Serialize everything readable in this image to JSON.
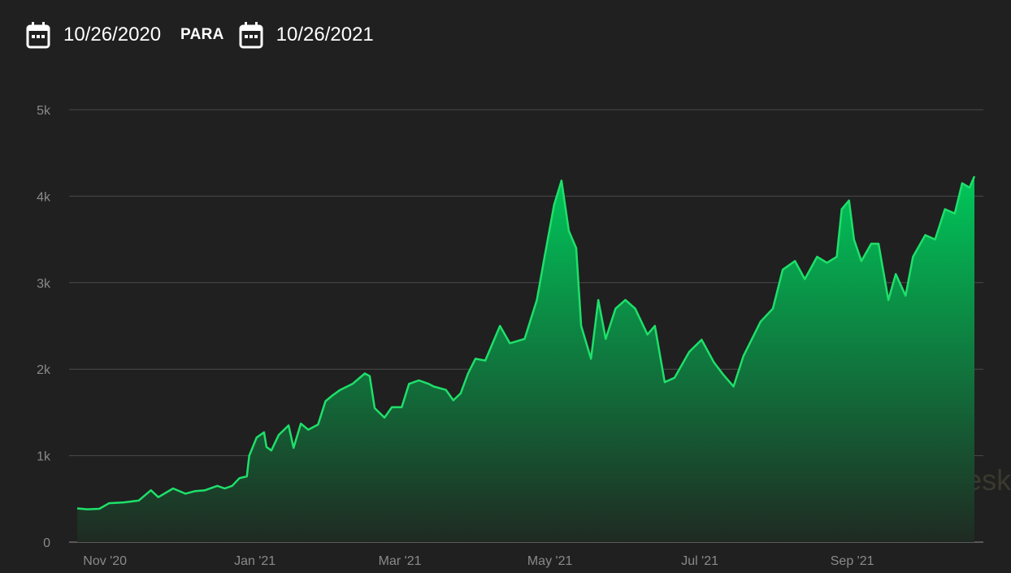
{
  "date_range": {
    "from_value": "10/26/2020",
    "separator_label": "PARA",
    "to_value": "10/26/2021",
    "icon": "calendar-icon"
  },
  "watermark": {
    "text": "coindesk",
    "icon": "coindesk-logo-icon"
  },
  "colors": {
    "background": "#202020",
    "line": "#1ee06a",
    "fill_top": "#00c75a",
    "fill_bottom": "#1f2a22",
    "grid": "#4a4a4a",
    "tick_text": "#8a8a8a"
  },
  "chart_data": {
    "type": "area",
    "title": "",
    "xlabel": "",
    "ylabel": "",
    "x_range": [
      "2020-10-26",
      "2021-10-26"
    ],
    "ylim": [
      0,
      5000
    ],
    "y_ticks": [
      0,
      1000,
      2000,
      3000,
      4000,
      5000
    ],
    "y_tick_labels": [
      "0",
      "1k",
      "2k",
      "3k",
      "4k",
      "5k"
    ],
    "x_ticks": [
      "2020-11-01",
      "2021-01-01",
      "2021-03-01",
      "2021-05-01",
      "2021-07-01",
      "2021-09-01"
    ],
    "x_tick_labels": [
      "Nov '20",
      "Jan '21",
      "Mar '21",
      "May '21",
      "Jul '21",
      "Sep '21"
    ],
    "grid": true,
    "legend": "none",
    "series": [
      {
        "points": [
          [
            "2020-10-26",
            390
          ],
          [
            "2020-10-30",
            380
          ],
          [
            "2020-11-04",
            385
          ],
          [
            "2020-11-08",
            450
          ],
          [
            "2020-11-14",
            460
          ],
          [
            "2020-11-20",
            480
          ],
          [
            "2020-11-25",
            600
          ],
          [
            "2020-11-28",
            520
          ],
          [
            "2020-12-04",
            620
          ],
          [
            "2020-12-09",
            560
          ],
          [
            "2020-12-13",
            590
          ],
          [
            "2020-12-17",
            600
          ],
          [
            "2020-12-22",
            650
          ],
          [
            "2020-12-25",
            620
          ],
          [
            "2020-12-28",
            650
          ],
          [
            "2020-12-31",
            740
          ],
          [
            "2021-01-03",
            760
          ],
          [
            "2021-01-04",
            1000
          ],
          [
            "2021-01-07",
            1210
          ],
          [
            "2021-01-10",
            1270
          ],
          [
            "2021-01-11",
            1100
          ],
          [
            "2021-01-13",
            1060
          ],
          [
            "2021-01-16",
            1240
          ],
          [
            "2021-01-20",
            1350
          ],
          [
            "2021-01-22",
            1090
          ],
          [
            "2021-01-25",
            1370
          ],
          [
            "2021-01-28",
            1300
          ],
          [
            "2021-02-01",
            1360
          ],
          [
            "2021-02-04",
            1630
          ],
          [
            "2021-02-07",
            1700
          ],
          [
            "2021-02-10",
            1760
          ],
          [
            "2021-02-15",
            1830
          ],
          [
            "2021-02-20",
            1950
          ],
          [
            "2021-02-22",
            1920
          ],
          [
            "2021-02-24",
            1550
          ],
          [
            "2021-02-28",
            1440
          ],
          [
            "2021-03-03",
            1560
          ],
          [
            "2021-03-07",
            1560
          ],
          [
            "2021-03-10",
            1830
          ],
          [
            "2021-03-14",
            1870
          ],
          [
            "2021-03-18",
            1830
          ],
          [
            "2021-03-20",
            1800
          ],
          [
            "2021-03-25",
            1760
          ],
          [
            "2021-03-28",
            1640
          ],
          [
            "2021-03-31",
            1720
          ],
          [
            "2021-04-03",
            1950
          ],
          [
            "2021-04-06",
            2120
          ],
          [
            "2021-04-10",
            2100
          ],
          [
            "2021-04-16",
            2500
          ],
          [
            "2021-04-20",
            2300
          ],
          [
            "2021-04-26",
            2350
          ],
          [
            "2021-05-01",
            2800
          ],
          [
            "2021-05-04",
            3280
          ],
          [
            "2021-05-08",
            3900
          ],
          [
            "2021-05-11",
            4180
          ],
          [
            "2021-05-14",
            3600
          ],
          [
            "2021-05-17",
            3400
          ],
          [
            "2021-05-19",
            2500
          ],
          [
            "2021-05-23",
            2120
          ],
          [
            "2021-05-26",
            2800
          ],
          [
            "2021-05-29",
            2350
          ],
          [
            "2021-06-02",
            2700
          ],
          [
            "2021-06-06",
            2800
          ],
          [
            "2021-06-10",
            2700
          ],
          [
            "2021-06-15",
            2400
          ],
          [
            "2021-06-18",
            2500
          ],
          [
            "2021-06-22",
            1850
          ],
          [
            "2021-06-26",
            1900
          ],
          [
            "2021-07-02",
            2200
          ],
          [
            "2021-07-07",
            2340
          ],
          [
            "2021-07-12",
            2080
          ],
          [
            "2021-07-16",
            1930
          ],
          [
            "2021-07-20",
            1800
          ],
          [
            "2021-07-24",
            2150
          ],
          [
            "2021-07-31",
            2550
          ],
          [
            "2021-08-05",
            2700
          ],
          [
            "2021-08-09",
            3150
          ],
          [
            "2021-08-14",
            3250
          ],
          [
            "2021-08-18",
            3040
          ],
          [
            "2021-08-23",
            3300
          ],
          [
            "2021-08-27",
            3230
          ],
          [
            "2021-08-31",
            3300
          ],
          [
            "2021-09-02",
            3850
          ],
          [
            "2021-09-05",
            3950
          ],
          [
            "2021-09-07",
            3500
          ],
          [
            "2021-09-10",
            3250
          ],
          [
            "2021-09-14",
            3450
          ],
          [
            "2021-09-17",
            3450
          ],
          [
            "2021-09-21",
            2800
          ],
          [
            "2021-09-24",
            3100
          ],
          [
            "2021-09-28",
            2850
          ],
          [
            "2021-10-01",
            3300
          ],
          [
            "2021-10-06",
            3550
          ],
          [
            "2021-10-10",
            3500
          ],
          [
            "2021-10-14",
            3850
          ],
          [
            "2021-10-18",
            3800
          ],
          [
            "2021-10-21",
            4150
          ],
          [
            "2021-10-24",
            4100
          ],
          [
            "2021-10-26",
            4230
          ]
        ]
      }
    ]
  }
}
